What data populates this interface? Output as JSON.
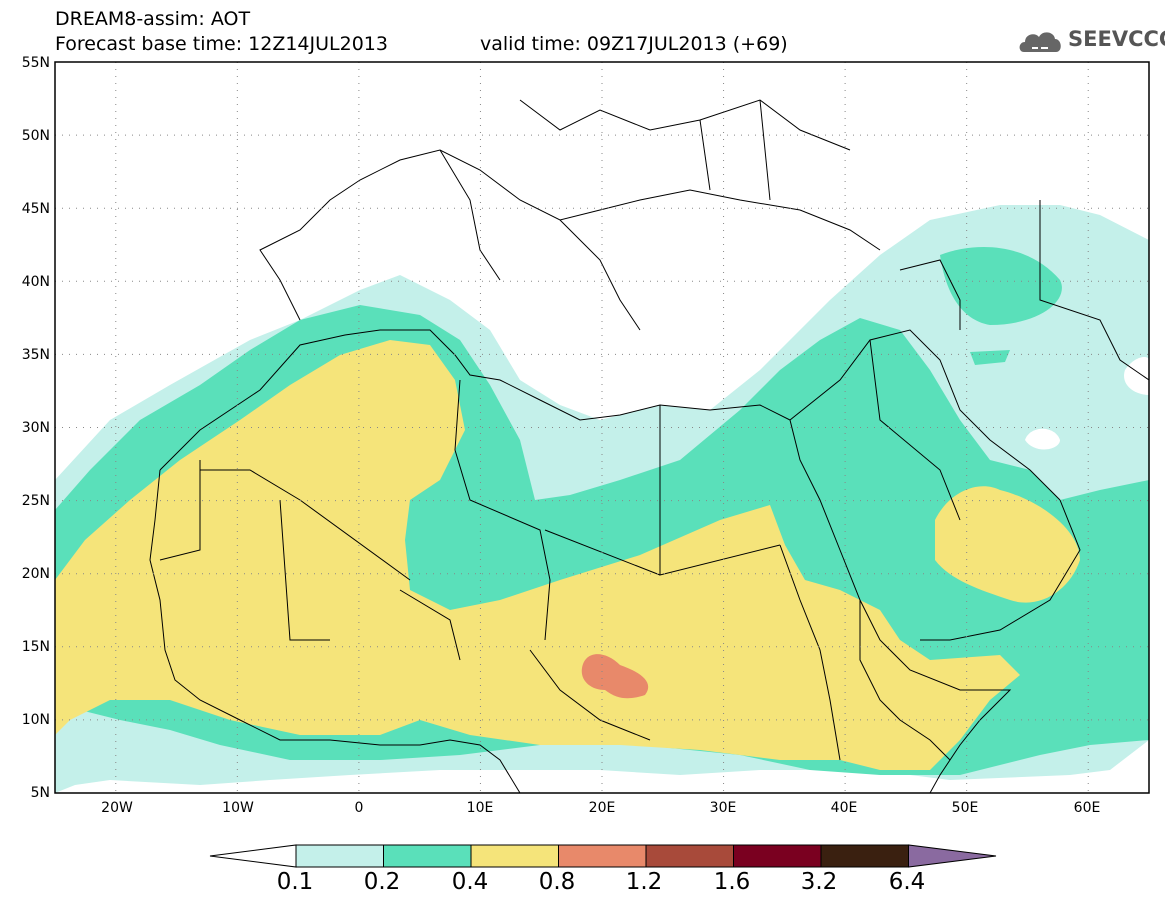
{
  "header": {
    "title_line1": "DREAM8-assim: AOT",
    "title_line2": "Forecast base time: 12Z14JUL2013",
    "valid_time": "valid time: 09Z17JUL2013 (+69)",
    "logo_text": "SEEVCCC"
  },
  "map": {
    "variable": "AOT",
    "lat_labels": [
      "55N",
      "50N",
      "45N",
      "40N",
      "35N",
      "30N",
      "25N",
      "20N",
      "15N",
      "10N",
      "5N"
    ],
    "lon_labels": [
      "20W",
      "10W",
      "0",
      "10E",
      "20E",
      "30E",
      "40E",
      "50E",
      "60E"
    ],
    "lat_range": [
      5,
      55
    ],
    "lon_range": [
      -25,
      65
    ],
    "grid": "dotted"
  },
  "colorbar": {
    "levels": [
      "0.1",
      "0.2",
      "0.4",
      "0.8",
      "1.2",
      "1.6",
      "3.2",
      "6.4"
    ],
    "colors": [
      "#ffffff",
      "#c4f0ea",
      "#5ae0ba",
      "#f5e47a",
      "#e8896a",
      "#a84a3a",
      "#7a0020",
      "#3a2010",
      "#8a6aa0"
    ]
  },
  "colors": {
    "level_0_1": "#c4f0ea",
    "level_0_2": "#5ae0ba",
    "level_0_4": "#f5e47a",
    "level_0_8": "#e8896a"
  }
}
